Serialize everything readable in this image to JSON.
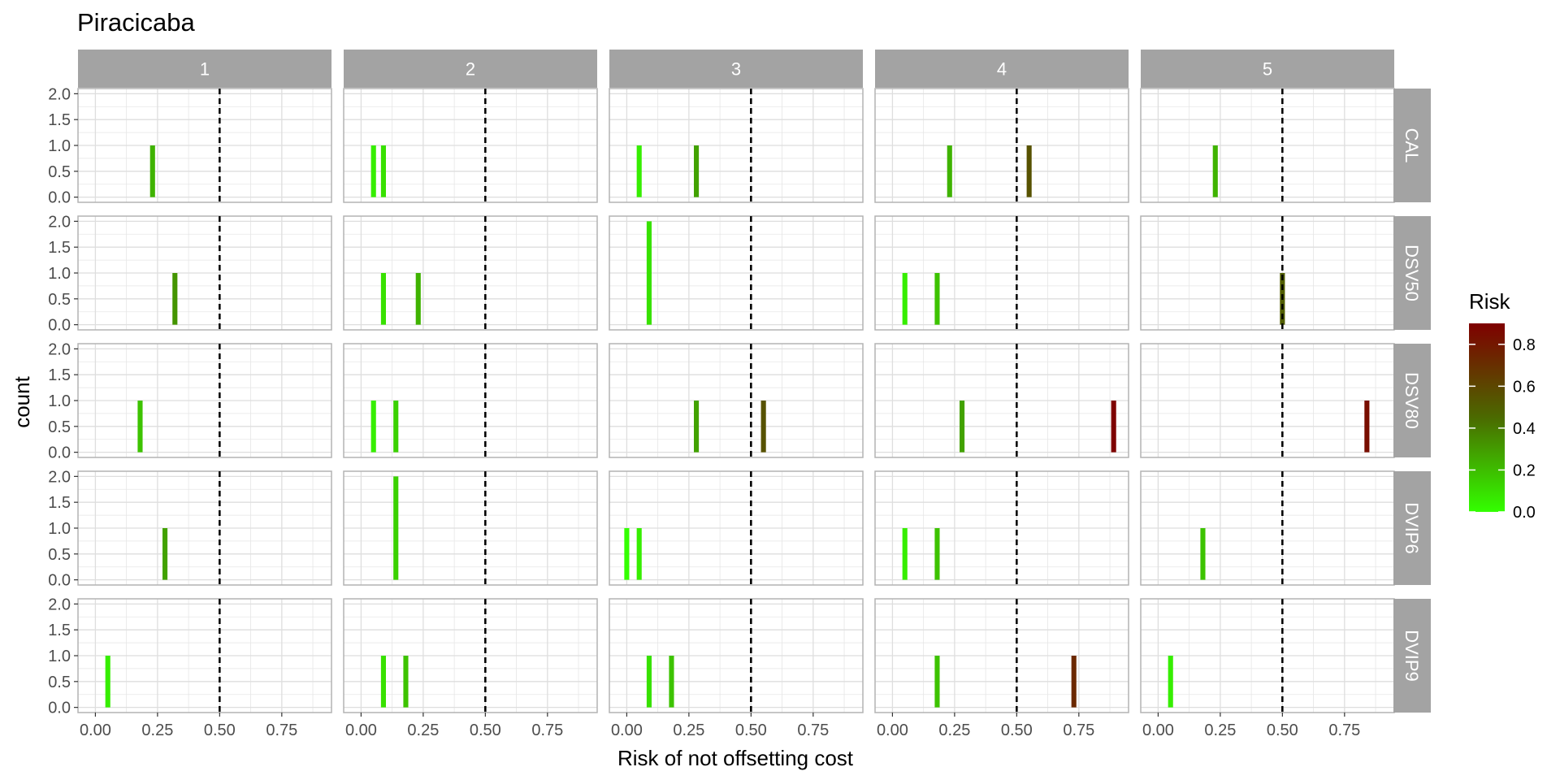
{
  "chart_data": {
    "type": "bar",
    "title": "Piracicaba",
    "xlabel": "Risk of not offsetting cost",
    "ylabel": "count",
    "xlim": [
      -0.07,
      0.95
    ],
    "ylim": [
      -0.1,
      2.1
    ],
    "x_ticks": [
      "0.00",
      "0.25",
      "0.50",
      "0.75"
    ],
    "x_tick_values": [
      0,
      0.25,
      0.5,
      0.75
    ],
    "y_ticks": [
      "0.0",
      "0.5",
      "1.0",
      "1.5",
      "2.0"
    ],
    "y_tick_values": [
      0,
      0.5,
      1,
      1.5,
      2
    ],
    "threshold": 0.5,
    "bar_width": 0.02,
    "grid": true,
    "columns": [
      "1",
      "2",
      "3",
      "4",
      "5"
    ],
    "rows": [
      "CAL",
      "DSV50",
      "DSV80",
      "DVIP6",
      "DVIP9"
    ],
    "bars": [
      {
        "row": "CAL",
        "col": "1",
        "x": 0.23,
        "count": 1,
        "risk": 0.23
      },
      {
        "row": "CAL",
        "col": "2",
        "x": 0.05,
        "count": 1,
        "risk": 0.05
      },
      {
        "row": "CAL",
        "col": "2",
        "x": 0.09,
        "count": 1,
        "risk": 0.09
      },
      {
        "row": "CAL",
        "col": "3",
        "x": 0.05,
        "count": 1,
        "risk": 0.05
      },
      {
        "row": "CAL",
        "col": "3",
        "x": 0.28,
        "count": 1,
        "risk": 0.28
      },
      {
        "row": "CAL",
        "col": "4",
        "x": 0.23,
        "count": 1,
        "risk": 0.23
      },
      {
        "row": "CAL",
        "col": "4",
        "x": 0.55,
        "count": 1,
        "risk": 0.55
      },
      {
        "row": "CAL",
        "col": "5",
        "x": 0.23,
        "count": 1,
        "risk": 0.23
      },
      {
        "row": "DSV50",
        "col": "1",
        "x": 0.32,
        "count": 1,
        "risk": 0.32
      },
      {
        "row": "DSV50",
        "col": "2",
        "x": 0.09,
        "count": 1,
        "risk": 0.09
      },
      {
        "row": "DSV50",
        "col": "2",
        "x": 0.23,
        "count": 1,
        "risk": 0.23
      },
      {
        "row": "DSV50",
        "col": "3",
        "x": 0.09,
        "count": 2,
        "risk": 0.09
      },
      {
        "row": "DSV50",
        "col": "4",
        "x": 0.05,
        "count": 1,
        "risk": 0.05
      },
      {
        "row": "DSV50",
        "col": "4",
        "x": 0.18,
        "count": 1,
        "risk": 0.18
      },
      {
        "row": "DSV50",
        "col": "5",
        "x": 0.5,
        "count": 1,
        "risk": 0.5
      },
      {
        "row": "DSV80",
        "col": "1",
        "x": 0.18,
        "count": 1,
        "risk": 0.18
      },
      {
        "row": "DSV80",
        "col": "2",
        "x": 0.05,
        "count": 1,
        "risk": 0.05
      },
      {
        "row": "DSV80",
        "col": "2",
        "x": 0.14,
        "count": 1,
        "risk": 0.14
      },
      {
        "row": "DSV80",
        "col": "3",
        "x": 0.28,
        "count": 1,
        "risk": 0.28
      },
      {
        "row": "DSV80",
        "col": "3",
        "x": 0.55,
        "count": 1,
        "risk": 0.55
      },
      {
        "row": "DSV80",
        "col": "4",
        "x": 0.28,
        "count": 1,
        "risk": 0.28
      },
      {
        "row": "DSV80",
        "col": "4",
        "x": 0.89,
        "count": 1,
        "risk": 0.89
      },
      {
        "row": "DSV80",
        "col": "5",
        "x": 0.84,
        "count": 1,
        "risk": 0.84
      },
      {
        "row": "DVIP6",
        "col": "1",
        "x": 0.28,
        "count": 1,
        "risk": 0.28
      },
      {
        "row": "DVIP6",
        "col": "2",
        "x": 0.14,
        "count": 2,
        "risk": 0.14
      },
      {
        "row": "DVIP6",
        "col": "3",
        "x": 0.0,
        "count": 1,
        "risk": 0.0
      },
      {
        "row": "DVIP6",
        "col": "3",
        "x": 0.05,
        "count": 1,
        "risk": 0.05
      },
      {
        "row": "DVIP6",
        "col": "4",
        "x": 0.05,
        "count": 1,
        "risk": 0.05
      },
      {
        "row": "DVIP6",
        "col": "4",
        "x": 0.18,
        "count": 1,
        "risk": 0.18
      },
      {
        "row": "DVIP6",
        "col": "5",
        "x": 0.18,
        "count": 1,
        "risk": 0.18
      },
      {
        "row": "DVIP9",
        "col": "1",
        "x": 0.05,
        "count": 1,
        "risk": 0.05
      },
      {
        "row": "DVIP9",
        "col": "2",
        "x": 0.09,
        "count": 1,
        "risk": 0.09
      },
      {
        "row": "DVIP9",
        "col": "2",
        "x": 0.18,
        "count": 1,
        "risk": 0.18
      },
      {
        "row": "DVIP9",
        "col": "3",
        "x": 0.09,
        "count": 1,
        "risk": 0.09
      },
      {
        "row": "DVIP9",
        "col": "3",
        "x": 0.18,
        "count": 1,
        "risk": 0.18
      },
      {
        "row": "DVIP9",
        "col": "4",
        "x": 0.18,
        "count": 1,
        "risk": 0.18
      },
      {
        "row": "DVIP9",
        "col": "4",
        "x": 0.73,
        "count": 1,
        "risk": 0.73
      },
      {
        "row": "DVIP9",
        "col": "5",
        "x": 0.05,
        "count": 1,
        "risk": 0.05
      }
    ],
    "legend": {
      "title": "Risk",
      "position": "right",
      "ticks": [
        "0.0",
        "0.2",
        "0.4",
        "0.6",
        "0.8"
      ],
      "tick_values": [
        0,
        0.2,
        0.4,
        0.6,
        0.8
      ],
      "range": [
        0,
        0.9
      ],
      "color_low": "#33ff00",
      "color_high": "#7f0000"
    },
    "colors": {
      "strip_bg": "#a3a3a3",
      "strip_text": "#ffffff",
      "panel_border": "#b3b3b3",
      "grid": "#e6e6e6",
      "threshold_line": "#000000"
    }
  }
}
